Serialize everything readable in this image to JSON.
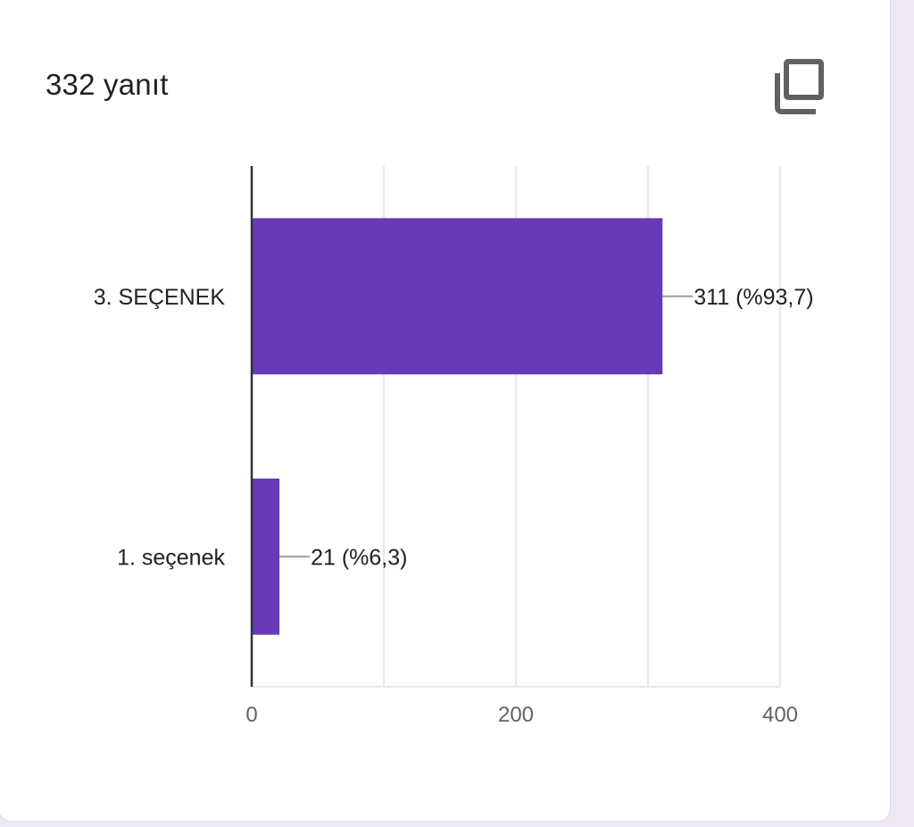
{
  "header": {
    "response_count": "332 yanıt",
    "copy_icon": "copy-icon"
  },
  "colors": {
    "bar": "#673ab7",
    "background": "#ede7f6",
    "card": "#ffffff"
  },
  "chart_data": {
    "type": "bar",
    "orientation": "horizontal",
    "categories": [
      "3. SEÇENEK",
      "1. seçenek"
    ],
    "values": [
      311,
      21
    ],
    "data_labels": [
      "311 (%93,7)",
      "21 (%6,3)"
    ],
    "x_ticks": [
      "0",
      "200",
      "400"
    ],
    "xlim": [
      0,
      400
    ],
    "grid": true,
    "legend": "none"
  }
}
